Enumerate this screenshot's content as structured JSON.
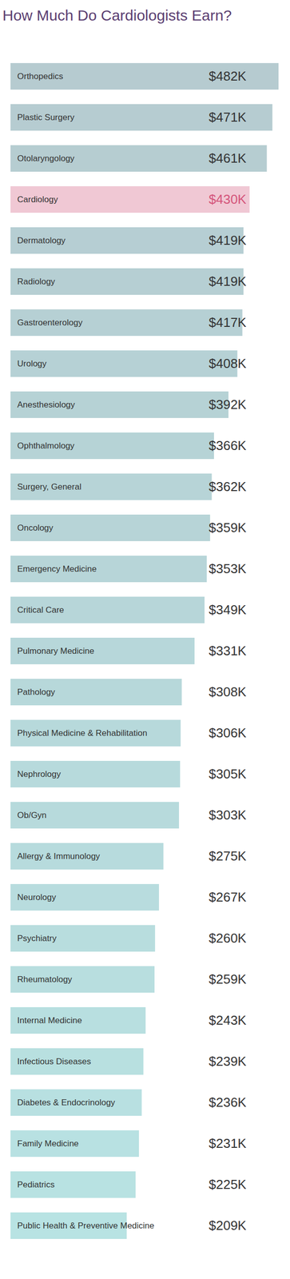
{
  "chart_data": {
    "type": "bar",
    "title": "How Much Do Cardiologists Earn?",
    "orientation": "horizontal",
    "categories": [
      "Orthopedics",
      "Plastic Surgery",
      "Otolaryngology",
      "Cardiology",
      "Dermatology",
      "Radiology",
      "Gastroenterology",
      "Urology",
      "Anesthesiology",
      "Ophthalmology",
      "Surgery, General",
      "Oncology",
      "Emergency Medicine",
      "Critical Care",
      "Pulmonary Medicine",
      "Pathology",
      "Physical Medicine & Rehabilitation",
      "Nephrology",
      "Ob/Gyn",
      "Allergy & Immunology",
      "Neurology",
      "Psychiatry",
      "Rheumatology",
      "Internal Medicine",
      "Infectious Diseases",
      "Diabetes & Endocrinology",
      "Family Medicine",
      "Pediatrics",
      "Public Health & Preventive Medicine"
    ],
    "values": [
      482,
      471,
      461,
      430,
      419,
      419,
      417,
      408,
      392,
      366,
      362,
      359,
      353,
      349,
      331,
      308,
      306,
      305,
      303,
      275,
      267,
      260,
      259,
      243,
      239,
      236,
      231,
      225,
      209
    ],
    "value_labels": [
      "$482K",
      "$471K",
      "$461K",
      "$430K",
      "$419K",
      "$419K",
      "$417K",
      "$408K",
      "$392K",
      "$366K",
      "$362K",
      "$359K",
      "$353K",
      "$349K",
      "$331K",
      "$308K",
      "$306K",
      "$305K",
      "$303K",
      "$275K",
      "$267K",
      "$260K",
      "$259K",
      "$243K",
      "$239K",
      "$236K",
      "$231K",
      "$225K",
      "$209K"
    ],
    "colors": [
      "#b6cbd0",
      "#b6ccd1",
      "#b6cdd1",
      "#f0c8d4",
      "#b6ced3",
      "#b6cfd3",
      "#b6d0d4",
      "#b6d1d5",
      "#b6d2d5",
      "#b6d3d6",
      "#b7d4d7",
      "#b7d4d7",
      "#b7d5d8",
      "#b7d6d9",
      "#b7d7da",
      "#b7d8da",
      "#b7d9db",
      "#b7dadc",
      "#b7dadc",
      "#b7dbdd",
      "#b8dcde",
      "#b8ddde",
      "#b8dedf",
      "#b8dfe0",
      "#b8e0e0",
      "#b8e0e1",
      "#b8e1e2",
      "#b8e2e2",
      "#b8e3e3"
    ],
    "xlim": [
      0,
      482
    ],
    "xticks": [],
    "grid": false,
    "data_labels": true,
    "tick_labels": false
  }
}
